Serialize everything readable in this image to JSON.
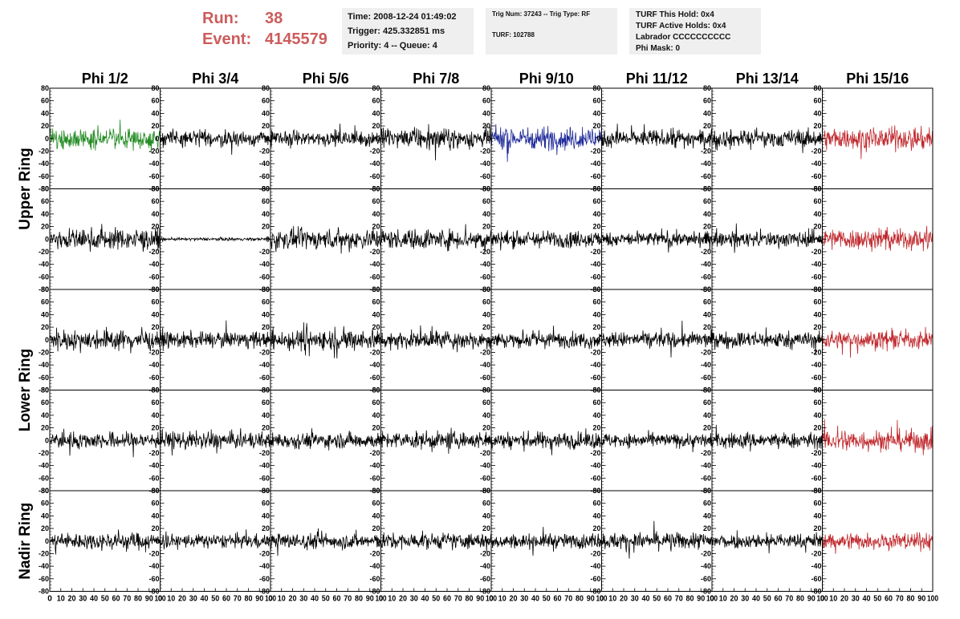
{
  "header": {
    "run_label": "Run:",
    "run_value": "38",
    "event_label": "Event:",
    "event_value": "4145579",
    "time_line": "Time: 2008-12-24 01:49:02",
    "trigger_line": "Trigger: 425.332851 ms",
    "priority_line": "Priority: 4 -- Queue: 4",
    "trig_num_line": "Trig Num: 37243 -- Trig Type: RF",
    "turf_line": "TURF: 102788",
    "turf_hold_line": "TURF This Hold: 0x4",
    "turf_active_line": "TURF Active Holds: 0x4",
    "labrador_line": "Labrador CCCCCCCCCC",
    "phi_mask_line": "Phi Mask: 0"
  },
  "chart_data": {
    "type": "line",
    "columns": [
      "Phi 1/2",
      "Phi 3/4",
      "Phi 5/6",
      "Phi 7/8",
      "Phi 9/10",
      "Phi 11/12",
      "Phi 13/14",
      "Phi 15/16"
    ],
    "ring_labels": [
      {
        "name": "Upper Ring",
        "rows": [
          0,
          1
        ]
      },
      {
        "name": "Lower Ring",
        "rows": [
          2,
          3
        ]
      },
      {
        "name": "Nadir Ring",
        "rows": [
          4
        ]
      }
    ],
    "rows": 5,
    "xlim": [
      0,
      100
    ],
    "x_ticks": [
      0,
      10,
      20,
      30,
      40,
      50,
      60,
      70,
      80,
      90,
      100
    ],
    "ylim": [
      -80,
      80
    ],
    "y_ticks": [
      80,
      60,
      40,
      20,
      0,
      -20,
      -40,
      -60,
      -80
    ],
    "samples": 260,
    "amplitude": [
      [
        14,
        11,
        11,
        14,
        16,
        12,
        12,
        15
      ],
      [
        15,
        2,
        14,
        14,
        12,
        10,
        11,
        15
      ],
      [
        14,
        11,
        15,
        12,
        11,
        11,
        12,
        13
      ],
      [
        12,
        12,
        11,
        12,
        12,
        10,
        11,
        15
      ],
      [
        12,
        10,
        11,
        11,
        10,
        12,
        10,
        12
      ]
    ],
    "colors": {
      "default": "#000000",
      "phi1_upper": "#228b22",
      "phi9_upper": "#1e2a99",
      "phi15": "#c0282d"
    },
    "special_colors": [
      {
        "row": 0,
        "col": 0,
        "color": "#228b22"
      },
      {
        "row": 0,
        "col": 4,
        "color": "#1e2a99"
      },
      {
        "row": 0,
        "col": 7,
        "color": "#c0282d"
      },
      {
        "row": 1,
        "col": 7,
        "color": "#c0282d"
      },
      {
        "row": 2,
        "col": 7,
        "color": "#c0282d"
      },
      {
        "row": 3,
        "col": 7,
        "color": "#c0282d"
      },
      {
        "row": 4,
        "col": 7,
        "color": "#c0282d"
      }
    ]
  }
}
